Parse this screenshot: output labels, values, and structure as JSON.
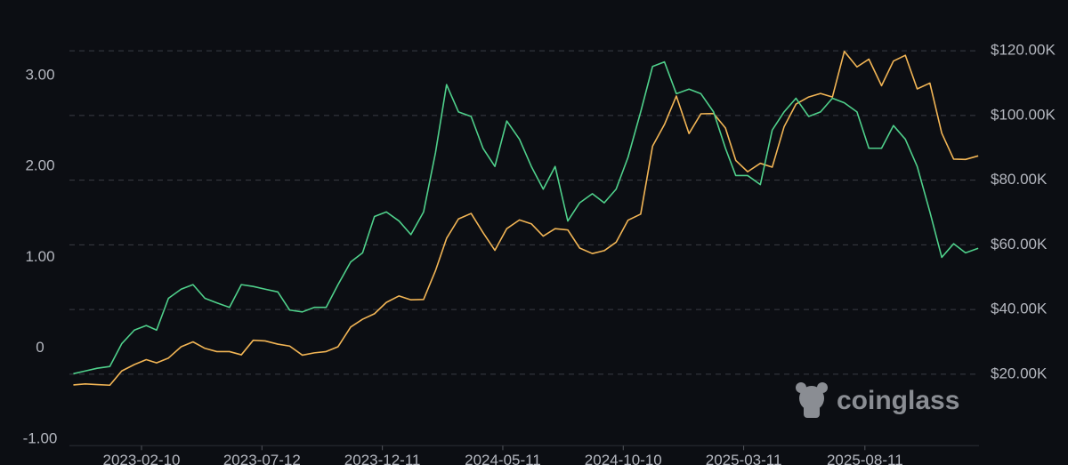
{
  "chart_data": {
    "type": "line",
    "watermark": "coinglass",
    "x": [
      "2022-11-16",
      "2022-12-01",
      "2022-12-16",
      "2023-01-01",
      "2023-01-16",
      "2023-02-01",
      "2023-02-16",
      "2023-03-01",
      "2023-03-16",
      "2023-04-01",
      "2023-04-16",
      "2023-05-01",
      "2023-05-16",
      "2023-06-01",
      "2023-06-16",
      "2023-07-01",
      "2023-07-16",
      "2023-08-01",
      "2023-08-16",
      "2023-09-01",
      "2023-09-16",
      "2023-10-01",
      "2023-10-16",
      "2023-11-01",
      "2023-11-16",
      "2023-12-01",
      "2023-12-16",
      "2024-01-01",
      "2024-01-16",
      "2024-02-01",
      "2024-02-16",
      "2024-03-01",
      "2024-03-16",
      "2024-04-01",
      "2024-04-16",
      "2024-05-01",
      "2024-05-16",
      "2024-06-01",
      "2024-06-16",
      "2024-07-01",
      "2024-07-16",
      "2024-08-01",
      "2024-08-16",
      "2024-09-01",
      "2024-09-16",
      "2024-10-01",
      "2024-10-16",
      "2024-11-01",
      "2024-11-16",
      "2024-12-01",
      "2024-12-16",
      "2025-01-01",
      "2025-01-16",
      "2025-02-01",
      "2025-02-16",
      "2025-03-01",
      "2025-03-16",
      "2025-04-01",
      "2025-04-16",
      "2025-05-01",
      "2025-05-16",
      "2025-06-01",
      "2025-06-16",
      "2025-07-01",
      "2025-07-16",
      "2025-08-01",
      "2025-08-16",
      "2025-09-01",
      "2025-09-16",
      "2025-10-01",
      "2025-10-16",
      "2025-11-01",
      "2025-11-16",
      "2025-12-01",
      "2025-12-16",
      "2026-01-01"
    ],
    "series": [
      {
        "color": "#4fd08b",
        "axis": "y",
        "values": [
          -0.28,
          -0.25,
          -0.22,
          -0.2,
          0.05,
          0.2,
          0.25,
          0.2,
          0.55,
          0.65,
          0.7,
          0.55,
          0.5,
          0.45,
          0.7,
          0.68,
          0.65,
          0.62,
          0.42,
          0.4,
          0.45,
          0.45,
          0.7,
          0.95,
          1.05,
          1.45,
          1.5,
          1.4,
          1.25,
          1.5,
          2.15,
          2.9,
          2.6,
          2.55,
          2.2,
          2.0,
          2.5,
          2.3,
          2.0,
          1.75,
          2.0,
          1.4,
          1.6,
          1.7,
          1.6,
          1.75,
          2.1,
          2.6,
          3.1,
          3.15,
          2.8,
          2.85,
          2.8,
          2.6,
          2.2,
          1.9,
          1.9,
          1.8,
          2.4,
          2.6,
          2.75,
          2.55,
          2.6,
          2.75,
          2.7,
          2.6,
          2.2,
          2.2,
          2.45,
          2.3,
          2.0,
          1.5,
          1.0,
          1.15,
          1.05,
          1.1
        ]
      },
      {
        "color": "#f2b555",
        "axis": "y2",
        "values": [
          16700,
          17000,
          16800,
          16600,
          21000,
          23000,
          24500,
          23500,
          25000,
          28500,
          30000,
          28000,
          27000,
          27000,
          26000,
          30500,
          30300,
          29300,
          28700,
          25900,
          26600,
          27000,
          28500,
          34600,
          37000,
          38700,
          42200,
          44200,
          43000,
          43100,
          52000,
          62000,
          68000,
          69700,
          63800,
          58300,
          65000,
          67700,
          66500,
          62700,
          65000,
          64600,
          59000,
          57300,
          58200,
          60800,
          67600,
          69500,
          90500,
          97200,
          106000,
          94400,
          100500,
          100600,
          96100,
          86100,
          82600,
          85200,
          84000,
          96500,
          103500,
          105700,
          106800,
          105700,
          119800,
          115000,
          117400,
          109200,
          116800,
          118600,
          108200,
          110000,
          94500,
          86500,
          86400,
          87500
        ]
      }
    ],
    "xlim": [
      "2022-11-11",
      "2026-01-02"
    ],
    "xticks": [
      "2023-02-10",
      "2023-07-12",
      "2023-12-11",
      "2024-05-11",
      "2024-10-10",
      "2025-03-11",
      "2025-08-11"
    ],
    "ylim": [
      -1.15,
      3.65
    ],
    "yticks": [
      {
        "value": -1,
        "label": "-1.00"
      },
      0,
      {
        "value": 1,
        "label": "1.00"
      },
      {
        "value": 2,
        "label": "2.00"
      },
      {
        "value": 3,
        "label": "3.00"
      }
    ],
    "y2lim": [
      -4300,
      130600
    ],
    "y2ticks": [
      {
        "value": 20000,
        "label": "$20.00K"
      },
      {
        "value": 40000,
        "label": "$40.00K"
      },
      {
        "value": 60000,
        "label": "$60.00K"
      },
      {
        "value": 80000,
        "label": "$80.00K"
      },
      {
        "value": 100000,
        "label": "$100.00K"
      },
      {
        "value": 120000,
        "label": "$120.00K"
      }
    ],
    "grid": "y2"
  }
}
